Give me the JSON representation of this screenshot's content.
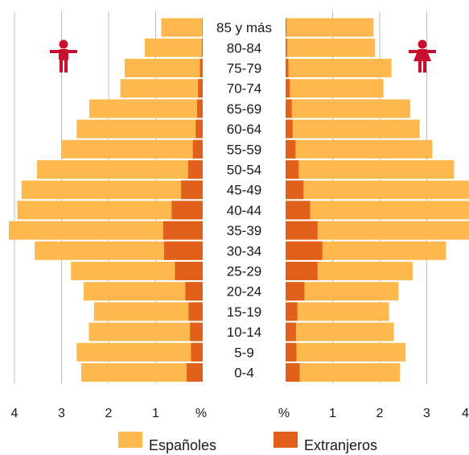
{
  "chart_data": {
    "type": "bar",
    "orientation": "horizontal-pyramid",
    "categories": [
      "0-4",
      "5-9",
      "10-14",
      "15-19",
      "20-24",
      "25-29",
      "30-34",
      "35-39",
      "40-44",
      "45-49",
      "50-54",
      "55-59",
      "60-64",
      "65-69",
      "70-74",
      "75-79",
      "80-84",
      "85 y más"
    ],
    "series": [
      {
        "name": "Españoles",
        "color": "#fdb94e",
        "left_values": [
          2.58,
          2.68,
          2.42,
          2.31,
          2.53,
          2.8,
          3.57,
          4.12,
          3.94,
          3.85,
          3.52,
          3.0,
          2.68,
          2.41,
          1.75,
          1.66,
          1.23,
          0.88
        ],
        "right_values": [
          2.43,
          2.55,
          2.3,
          2.2,
          2.4,
          2.7,
          3.41,
          3.97,
          3.92,
          3.9,
          3.58,
          3.12,
          2.85,
          2.65,
          2.08,
          2.25,
          1.9,
          1.87
        ]
      },
      {
        "name": "Extranjeros",
        "color": "#e0601c",
        "left_values": [
          0.34,
          0.25,
          0.27,
          0.3,
          0.37,
          0.59,
          0.82,
          0.84,
          0.66,
          0.46,
          0.31,
          0.21,
          0.15,
          0.12,
          0.1,
          0.06,
          0.02,
          0.01
        ],
        "right_values": [
          0.3,
          0.23,
          0.22,
          0.25,
          0.4,
          0.68,
          0.78,
          0.68,
          0.52,
          0.38,
          0.28,
          0.21,
          0.15,
          0.13,
          0.09,
          0.06,
          0.03,
          0.02
        ]
      }
    ],
    "x_ticks_left": [
      "4",
      "3",
      "2",
      "1",
      "%"
    ],
    "x_ticks_right": [
      "%",
      "1",
      "2",
      "3",
      "4"
    ],
    "xlim": [
      0,
      4.2
    ],
    "legend": [
      "Españoles",
      "Extranjeros"
    ],
    "legend_position": "bottom",
    "icons": {
      "left": "male-figure-icon",
      "right": "female-figure-icon",
      "icon_color": "#c8102e"
    },
    "grid": true,
    "gridline_color": "#bdbdbd"
  }
}
